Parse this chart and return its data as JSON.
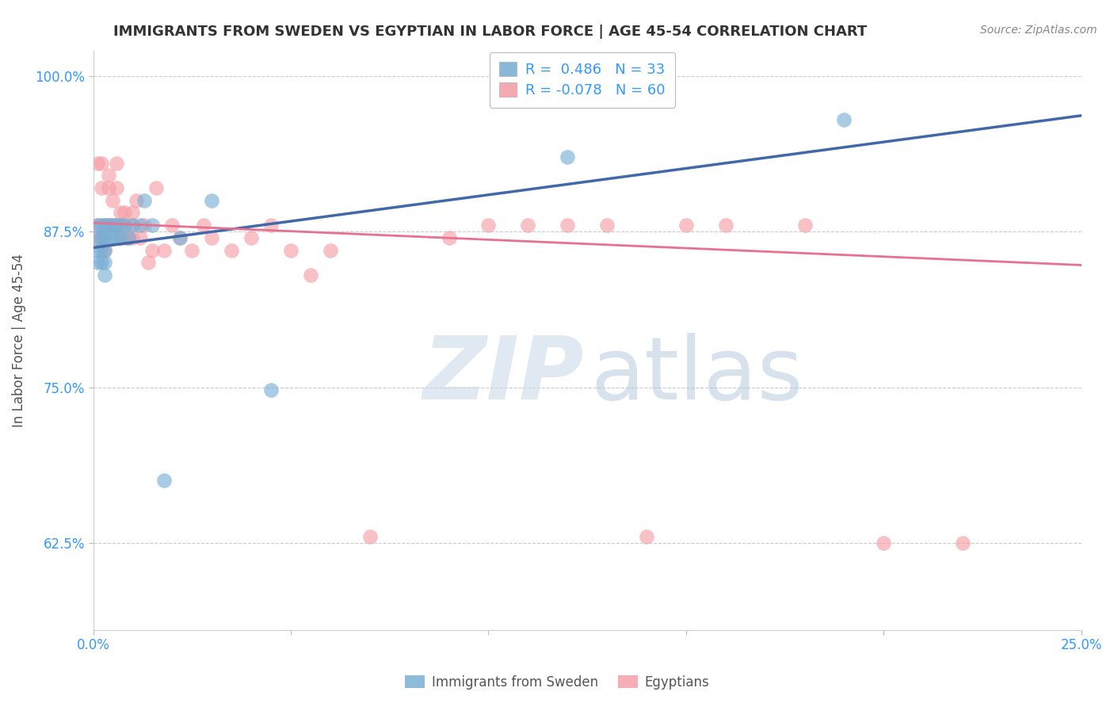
{
  "title": "IMMIGRANTS FROM SWEDEN VS EGYPTIAN IN LABOR FORCE | AGE 45-54 CORRELATION CHART",
  "source": "Source: ZipAtlas.com",
  "ylabel": "In Labor Force | Age 45-54",
  "xlim": [
    0.0,
    0.25
  ],
  "ylim": [
    0.555,
    1.02
  ],
  "yticks": [
    0.625,
    0.75,
    0.875,
    1.0
  ],
  "yticklabels": [
    "62.5%",
    "75.0%",
    "87.5%",
    "100.0%"
  ],
  "xtick_positions": [
    0.0,
    0.05,
    0.1,
    0.15,
    0.2,
    0.25
  ],
  "xticklabels": [
    "0.0%",
    "",
    "",
    "",
    "",
    "25.0%"
  ],
  "sweden_R": 0.486,
  "sweden_N": 33,
  "egypt_R": -0.078,
  "egypt_N": 60,
  "sweden_color": "#7BAFD4",
  "egypt_color": "#F4A0A8",
  "sweden_line_color": "#4169AA",
  "egypt_line_color": "#E87090",
  "legend_label_sweden": "Immigrants from Sweden",
  "legend_label_egypt": "Egyptians",
  "sweden_line_x0": 0.0,
  "sweden_line_y0": 0.862,
  "sweden_line_x1": 0.25,
  "sweden_line_y1": 0.968,
  "egypt_line_x0": 0.0,
  "egypt_line_y0": 0.882,
  "egypt_line_x1": 0.25,
  "egypt_line_y1": 0.848,
  "sweden_x": [
    0.001,
    0.001,
    0.001,
    0.002,
    0.002,
    0.002,
    0.003,
    0.003,
    0.003,
    0.004,
    0.004,
    0.005,
    0.005,
    0.006,
    0.006,
    0.007,
    0.007,
    0.008,
    0.009,
    0.01,
    0.012,
    0.013,
    0.015,
    0.018,
    0.022,
    0.03,
    0.045,
    0.12,
    0.19,
    0.001,
    0.002,
    0.003,
    0.003
  ],
  "sweden_y": [
    0.88,
    0.87,
    0.86,
    0.88,
    0.87,
    0.86,
    0.88,
    0.87,
    0.86,
    0.88,
    0.87,
    0.88,
    0.87,
    0.88,
    0.87,
    0.88,
    0.87,
    0.88,
    0.87,
    0.88,
    0.88,
    0.9,
    0.88,
    0.675,
    0.87,
    0.9,
    0.748,
    0.935,
    0.965,
    0.85,
    0.85,
    0.85,
    0.84
  ],
  "egypt_x": [
    0.001,
    0.001,
    0.002,
    0.002,
    0.003,
    0.003,
    0.004,
    0.004,
    0.005,
    0.005,
    0.006,
    0.006,
    0.007,
    0.007,
    0.008,
    0.008,
    0.009,
    0.01,
    0.01,
    0.011,
    0.012,
    0.013,
    0.014,
    0.015,
    0.016,
    0.018,
    0.02,
    0.022,
    0.025,
    0.028,
    0.03,
    0.035,
    0.04,
    0.045,
    0.05,
    0.055,
    0.06,
    0.07,
    0.09,
    0.1,
    0.11,
    0.12,
    0.13,
    0.14,
    0.15,
    0.16,
    0.18,
    0.2,
    0.22,
    0.001,
    0.002,
    0.003,
    0.003,
    0.004,
    0.005,
    0.006,
    0.007,
    0.008,
    0.009,
    0.01
  ],
  "egypt_y": [
    0.88,
    0.93,
    0.91,
    0.93,
    0.88,
    0.86,
    0.91,
    0.92,
    0.88,
    0.9,
    0.91,
    0.93,
    0.89,
    0.87,
    0.89,
    0.88,
    0.87,
    0.87,
    0.89,
    0.9,
    0.87,
    0.88,
    0.85,
    0.86,
    0.91,
    0.86,
    0.88,
    0.87,
    0.86,
    0.88,
    0.87,
    0.86,
    0.87,
    0.88,
    0.86,
    0.84,
    0.86,
    0.63,
    0.87,
    0.88,
    0.88,
    0.88,
    0.88,
    0.63,
    0.88,
    0.88,
    0.88,
    0.625,
    0.625,
    0.87,
    0.87,
    0.87,
    0.88,
    0.88,
    0.88,
    0.88,
    0.88,
    0.87,
    0.87,
    0.88
  ]
}
